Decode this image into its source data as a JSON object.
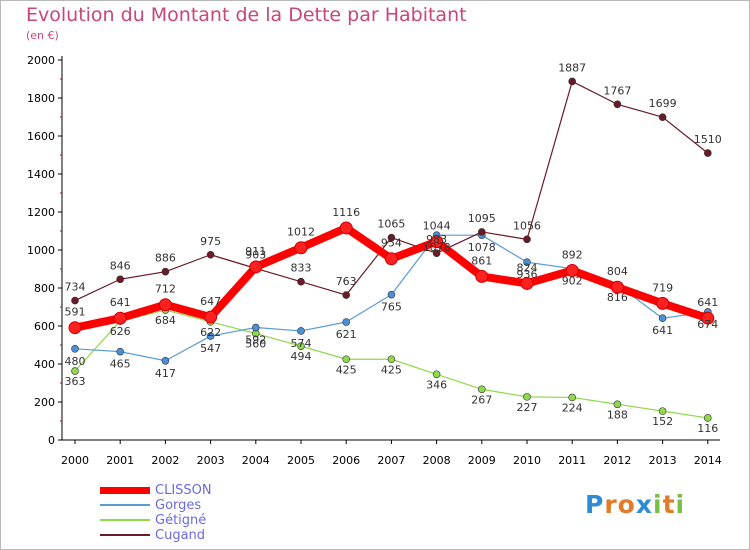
{
  "title": "Evolution du Montant de la Dette par Habitant",
  "subtitle": "(en €)",
  "chart_data": {
    "type": "line",
    "title": "Evolution du Montant de la Dette par Habitant",
    "ylabel": "(en €)",
    "xlabel": "",
    "categories": [
      "2000",
      "2001",
      "2002",
      "2003",
      "2004",
      "2005",
      "2006",
      "2007",
      "2008",
      "2009",
      "2010",
      "2011",
      "2012",
      "2013",
      "2014"
    ],
    "ylim": [
      0,
      2000
    ],
    "yticks": [
      "0",
      "200",
      "400",
      "600",
      "800",
      "1000",
      "1200",
      "1400",
      "1600",
      "1800",
      "2000"
    ],
    "grid": false,
    "legend_position": "bottom-left",
    "series": [
      {
        "name": "CLISSON",
        "color": "#ff0000",
        "values": [
          591,
          641,
          712,
          647,
          911,
          1012,
          1116,
          954,
          1044,
          861,
          824,
          892,
          804,
          719,
          641
        ]
      },
      {
        "name": "Gorges",
        "color": "#5a9bd5",
        "values": [
          480,
          465,
          417,
          547,
          592,
          574,
          621,
          765,
          1078,
          1078,
          936,
          902,
          816,
          641,
          674
        ]
      },
      {
        "name": "Gétigné",
        "color": "#8fd94a",
        "values": [
          363,
          626,
          684,
          622,
          560,
          494,
          425,
          425,
          346,
          267,
          227,
          224,
          188,
          152,
          116
        ]
      },
      {
        "name": "Cugand",
        "color": "#6b1a28",
        "values": [
          734,
          846,
          886,
          975,
          903,
          833,
          763,
          1065,
          983,
          1095,
          1056,
          1887,
          1767,
          1699,
          1510
        ]
      }
    ]
  },
  "legend": [
    {
      "label": "CLISSON",
      "color": "#ff0000"
    },
    {
      "label": "Gorges",
      "color": "#5a9bd5"
    },
    {
      "label": "Gétigné",
      "color": "#8fd94a"
    },
    {
      "label": "Cugand",
      "color": "#6b1a28"
    }
  ],
  "logo": {
    "letters": [
      {
        "ch": "P",
        "color": "#2e8bd6"
      },
      {
        "ch": "r",
        "color": "#e07b2a"
      },
      {
        "ch": "o",
        "color": "#e07b2a"
      },
      {
        "ch": "x",
        "color": "#2e8bd6"
      },
      {
        "ch": "i",
        "color": "#7ac143"
      },
      {
        "ch": "t",
        "color": "#e07b2a"
      },
      {
        "ch": "i",
        "color": "#7ac143"
      }
    ]
  }
}
